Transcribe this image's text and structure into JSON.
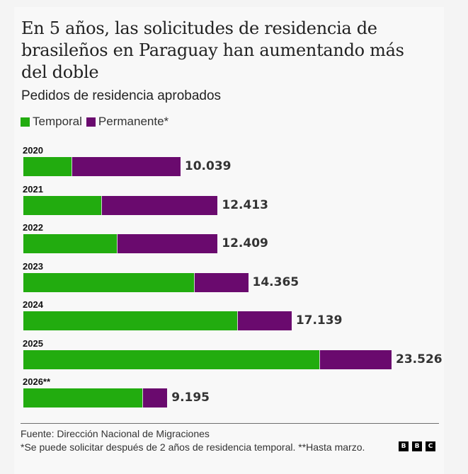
{
  "header": {
    "title": "En 5 años, las solicitudes de residencia de brasileños en Paraguay han aumentando más del doble",
    "subtitle": "Pedidos de residencia aprobados"
  },
  "legend": [
    {
      "label": "Temporal",
      "color": "#22ac0f"
    },
    {
      "label": "Permanente*",
      "color": "#6a0a6e"
    }
  ],
  "chart_data": {
    "type": "bar",
    "orientation": "horizontal",
    "stacked": true,
    "title": "En 5 años, las solicitudes de residencia de brasileños en Paraguay han aumentando más del doble",
    "subtitle": "Pedidos de residencia aprobados",
    "xlabel": "",
    "ylabel": "",
    "categories": [
      "2020",
      "2021",
      "2022",
      "2023",
      "2024",
      "2025",
      "2026**"
    ],
    "series": [
      {
        "name": "Temporal",
        "color": "#22ac0f",
        "values": [
          3120,
          5020,
          6020,
          10960,
          13730,
          18940,
          7660
        ]
      },
      {
        "name": "Permanente*",
        "color": "#6a0a6e",
        "values": [
          6919,
          7393,
          6389,
          3405,
          3409,
          4586,
          1535
        ]
      }
    ],
    "totals": [
      10039,
      12413,
      12409,
      14365,
      17139,
      23526,
      9195
    ],
    "total_labels": [
      "10.039",
      "12.413",
      "12.409",
      "14.365",
      "17.139",
      "23.526",
      "9.195"
    ],
    "xlim": [
      0,
      23526
    ],
    "grid": false,
    "legend_position": "top-left"
  },
  "footer": {
    "source": "Fuente: Dirección Nacional de Migraciones",
    "note": "*Se puede solicitar después de 2 años de residencia temporal. **Hasta marzo.",
    "logo": [
      "B",
      "B",
      "C"
    ]
  }
}
